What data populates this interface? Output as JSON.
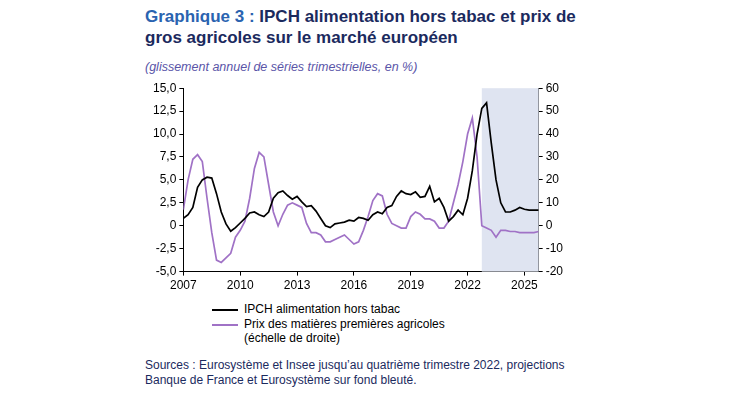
{
  "chart_data": {
    "type": "line",
    "title": "Graphique 3 : IPCH alimentation hors tabac et prix de gros agricoles sur le marché européen",
    "subtitle": "(glissement annuel de séries trimestrielles, en %)",
    "source": "Sources : Eurosystème et Insee jusqu’au quatrième trimestre 2022, projections Banque de France et Eurosystème sur fond bleuté.",
    "x": [
      2007,
      2007.25,
      2007.5,
      2007.75,
      2008,
      2008.25,
      2008.5,
      2008.75,
      2009,
      2009.25,
      2009.5,
      2009.75,
      2010,
      2010.25,
      2010.5,
      2010.75,
      2011,
      2011.25,
      2011.5,
      2011.75,
      2012,
      2012.25,
      2012.5,
      2012.75,
      2013,
      2013.25,
      2013.5,
      2013.75,
      2014,
      2014.25,
      2014.5,
      2014.75,
      2015,
      2015.25,
      2015.5,
      2015.75,
      2016,
      2016.25,
      2016.5,
      2016.75,
      2017,
      2017.25,
      2017.5,
      2017.75,
      2018,
      2018.25,
      2018.5,
      2018.75,
      2019,
      2019.25,
      2019.5,
      2019.75,
      2020,
      2020.25,
      2020.5,
      2020.75,
      2021,
      2021.25,
      2021.5,
      2021.75,
      2022,
      2022.25,
      2022.5,
      2022.75,
      2023,
      2023.25,
      2023.5,
      2023.75,
      2024,
      2024.25,
      2024.5,
      2024.75,
      2025,
      2025.25,
      2025.5,
      2025.75
    ],
    "xlim": [
      2007,
      2025.75
    ],
    "xticks": [
      2007,
      2010,
      2013,
      2016,
      2019,
      2022,
      2025
    ],
    "ylim": [
      -5,
      15
    ],
    "yticks": [
      {
        "value": -5,
        "label": "-5,0"
      },
      {
        "value": -2.5,
        "label": "-2,5"
      },
      0,
      {
        "value": 2.5,
        "label": "2,5"
      },
      {
        "value": 5,
        "label": "5,0"
      },
      {
        "value": 7.5,
        "label": "7,5"
      },
      {
        "value": 10,
        "label": "10,0"
      },
      {
        "value": 12.5,
        "label": "12,5"
      },
      {
        "value": 15,
        "label": "15,0"
      }
    ],
    "y2lim": [
      -20,
      60
    ],
    "y2ticks": [
      -20,
      -10,
      0,
      10,
      20,
      30,
      40,
      50,
      60
    ],
    "projection_from": 2022.75,
    "grid": false,
    "legend": "bottom",
    "series": [
      {
        "name": "IPCH alimentation hors tabac",
        "color": "#000000",
        "values": [
          0.8,
          1.2,
          2.0,
          4.2,
          5.0,
          5.3,
          5.2,
          3.5,
          1.5,
          0.2,
          -0.6,
          -0.2,
          0.3,
          0.8,
          1.4,
          1.5,
          1.2,
          1.0,
          1.5,
          3.0,
          3.6,
          3.8,
          3.3,
          2.9,
          3.2,
          2.6,
          2.1,
          2.2,
          1.6,
          0.8,
          0.0,
          -0.2,
          0.2,
          0.3,
          0.4,
          0.6,
          0.5,
          0.9,
          0.8,
          0.6,
          1.2,
          1.5,
          1.3,
          2.0,
          2.2,
          3.2,
          3.8,
          3.5,
          3.4,
          3.7,
          3.1,
          3.2,
          4.3,
          2.6,
          3.0,
          2.0,
          0.5,
          1.0,
          1.7,
          1.2,
          3.0,
          6.0,
          10.0,
          12.8,
          13.4,
          9.0,
          5.0,
          2.5,
          1.5,
          1.5,
          1.7,
          2.0,
          1.8,
          1.7,
          1.7,
          1.7
        ]
      },
      {
        "name": "Prix des matières premières agricoles (échelle de droite)",
        "color": "#a072c6",
        "axis": "y2",
        "values": [
          7,
          20,
          29,
          31,
          28,
          12,
          -3,
          -15,
          -16,
          -14,
          -12,
          -5,
          -2,
          2,
          12,
          25,
          32,
          30,
          18,
          6,
          0,
          5,
          9,
          10,
          9,
          8,
          1,
          -3,
          -3,
          -4,
          -7,
          -7,
          -6,
          -5,
          -4,
          -6,
          -8,
          -7,
          -2,
          4,
          11,
          14,
          13,
          5,
          1,
          0,
          -1,
          -1,
          4,
          6,
          5,
          3,
          3,
          2,
          -1,
          -1,
          2,
          10,
          18,
          28,
          40,
          47,
          30,
          0,
          -1,
          -2,
          -5,
          -2,
          -2,
          -2.5,
          -2.5,
          -3,
          -3,
          -3,
          -3,
          -2.5
        ]
      }
    ]
  }
}
